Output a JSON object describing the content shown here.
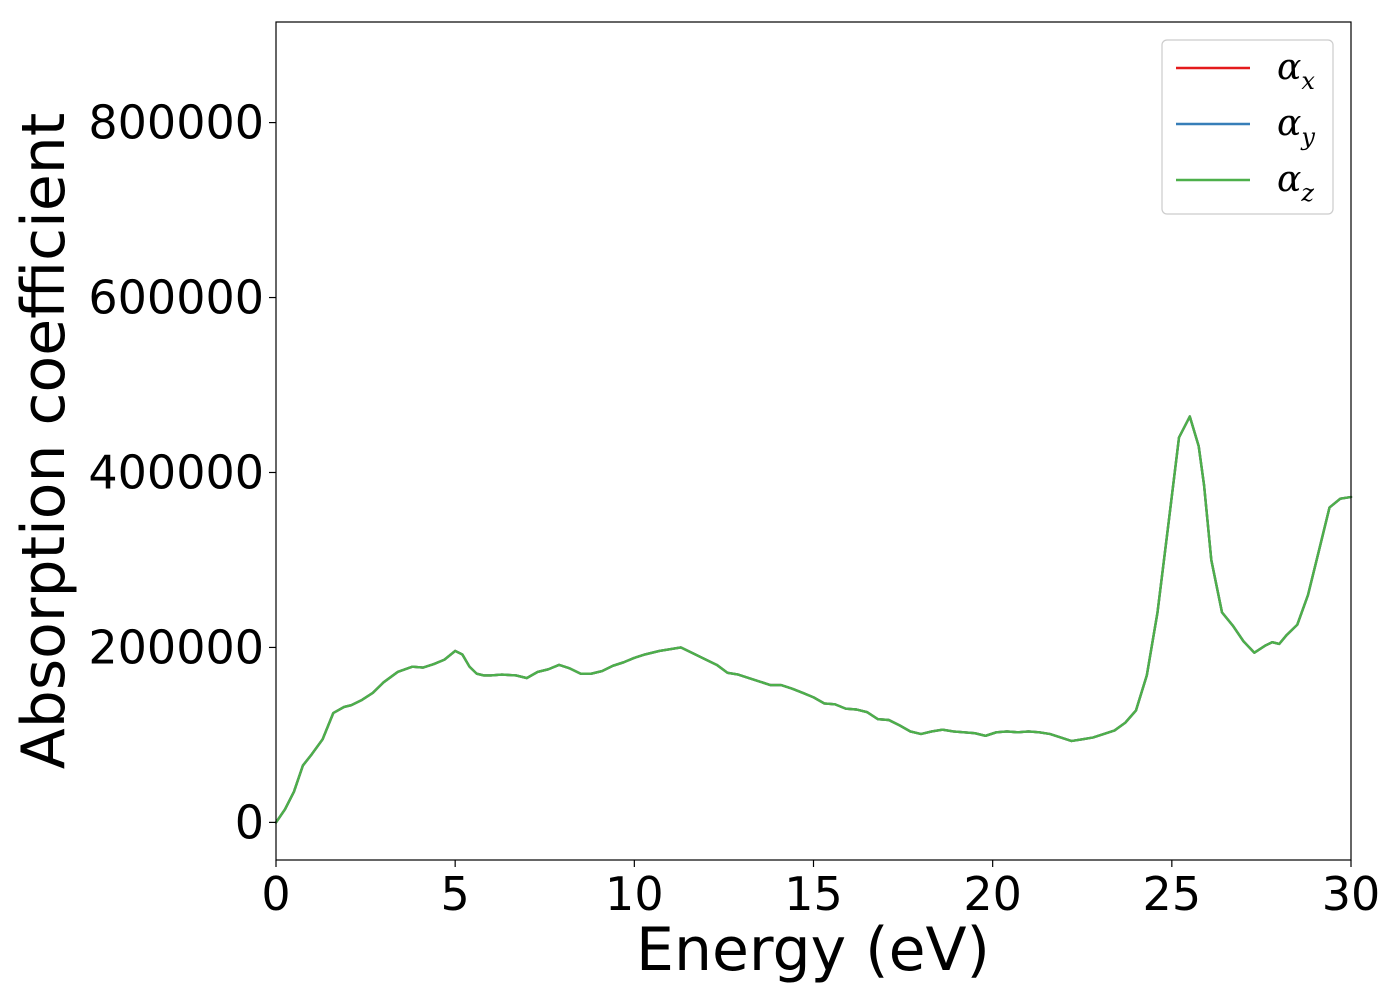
{
  "chart_data": {
    "type": "line",
    "xlabel": "Energy (eV)",
    "ylabel": "Absorption coefficient",
    "xlim": [
      0,
      30
    ],
    "ylim": [
      -43000,
      915000
    ],
    "xticks": [
      0,
      5,
      10,
      15,
      20,
      25,
      30
    ],
    "xtick_labels": [
      "0",
      "5",
      "10",
      "15",
      "20",
      "25",
      "30"
    ],
    "yticks": [
      0,
      200000,
      400000,
      600000,
      800000
    ],
    "ytick_labels": [
      "0",
      "200000",
      "400000",
      "600000",
      "800000"
    ],
    "grid": false,
    "legend_position": "top-right",
    "x": [
      0,
      0.25,
      0.5,
      0.75,
      1.0,
      1.3,
      1.6,
      1.9,
      2.1,
      2.4,
      2.7,
      3.0,
      3.4,
      3.8,
      4.1,
      4.4,
      4.7,
      5.0,
      5.2,
      5.4,
      5.6,
      5.8,
      6.0,
      6.3,
      6.7,
      7.0,
      7.3,
      7.6,
      7.9,
      8.2,
      8.5,
      8.8,
      9.1,
      9.4,
      9.7,
      10.0,
      10.3,
      10.7,
      11.0,
      11.3,
      11.6,
      12.0,
      12.3,
      12.6,
      12.9,
      13.2,
      13.5,
      13.8,
      14.1,
      14.4,
      14.7,
      15.0,
      15.3,
      15.6,
      15.9,
      16.2,
      16.5,
      16.8,
      17.1,
      17.4,
      17.7,
      18.0,
      18.3,
      18.6,
      18.9,
      19.2,
      19.5,
      19.8,
      20.1,
      20.4,
      20.7,
      21.0,
      21.3,
      21.6,
      21.9,
      22.2,
      22.5,
      22.8,
      23.1,
      23.4,
      23.7,
      24.0,
      24.3,
      24.6,
      24.9,
      25.2,
      25.5,
      25.75,
      25.9,
      26.1,
      26.4,
      26.7,
      27.0,
      27.3,
      27.6,
      27.8,
      28.0,
      28.2,
      28.5,
      28.8,
      29.1,
      29.4,
      29.7,
      30.0
    ],
    "series": [
      {
        "name": "αx",
        "color": "#e41a1c",
        "values": [
          0,
          15000,
          35000,
          65000,
          78000,
          95000,
          125000,
          132000,
          134000,
          140000,
          148000,
          160000,
          172000,
          178000,
          177000,
          181000,
          186000,
          196000,
          192000,
          178000,
          170000,
          168000,
          168000,
          169000,
          168000,
          165000,
          172000,
          175000,
          180000,
          176000,
          170000,
          170000,
          173000,
          179000,
          183000,
          188000,
          192000,
          196000,
          198000,
          200000,
          194000,
          186000,
          180000,
          171000,
          169000,
          165000,
          161000,
          157000,
          157000,
          153000,
          148000,
          143000,
          136000,
          135000,
          130000,
          129000,
          126000,
          118000,
          117000,
          111000,
          104000,
          101000,
          104000,
          106000,
          104000,
          103000,
          102000,
          99000,
          103000,
          104000,
          103000,
          104000,
          103000,
          101000,
          97000,
          93000,
          95000,
          97000,
          101000,
          105000,
          114000,
          128000,
          168000,
          240000,
          340000,
          440000,
          464000,
          430000,
          385000,
          300000,
          240000,
          225000,
          207000,
          194000,
          202000,
          206000,
          204000,
          214000,
          226000,
          260000,
          310000,
          360000,
          370000,
          372000
        ]
      },
      {
        "name": "αy",
        "color": "#377eb8",
        "values": [
          0,
          15000,
          35000,
          65000,
          78000,
          95000,
          125000,
          132000,
          134000,
          140000,
          148000,
          160000,
          172000,
          178000,
          177000,
          181000,
          186000,
          196000,
          192000,
          178000,
          170000,
          168000,
          168000,
          169000,
          168000,
          165000,
          172000,
          175000,
          180000,
          176000,
          170000,
          170000,
          173000,
          179000,
          183000,
          188000,
          192000,
          196000,
          198000,
          200000,
          194000,
          186000,
          180000,
          171000,
          169000,
          165000,
          161000,
          157000,
          157000,
          153000,
          148000,
          143000,
          136000,
          135000,
          130000,
          129000,
          126000,
          118000,
          117000,
          111000,
          104000,
          101000,
          104000,
          106000,
          104000,
          103000,
          102000,
          99000,
          103000,
          104000,
          103000,
          104000,
          103000,
          101000,
          97000,
          93000,
          95000,
          97000,
          101000,
          105000,
          114000,
          128000,
          168000,
          240000,
          340000,
          440000,
          464000,
          430000,
          385000,
          300000,
          240000,
          225000,
          207000,
          194000,
          202000,
          206000,
          204000,
          214000,
          226000,
          260000,
          310000,
          360000,
          370000,
          372000
        ]
      },
      {
        "name": "αz",
        "color": "#4daf4a",
        "values": [
          0,
          15000,
          35000,
          65000,
          78000,
          95000,
          125000,
          132000,
          134000,
          140000,
          148000,
          160000,
          172000,
          178000,
          177000,
          181000,
          186000,
          196000,
          192000,
          178000,
          170000,
          168000,
          168000,
          169000,
          168000,
          165000,
          172000,
          175000,
          180000,
          176000,
          170000,
          170000,
          173000,
          179000,
          183000,
          188000,
          192000,
          196000,
          198000,
          200000,
          194000,
          186000,
          180000,
          171000,
          169000,
          165000,
          161000,
          157000,
          157000,
          153000,
          148000,
          143000,
          136000,
          135000,
          130000,
          129000,
          126000,
          118000,
          117000,
          111000,
          104000,
          101000,
          104000,
          106000,
          104000,
          103000,
          102000,
          99000,
          103000,
          104000,
          103000,
          104000,
          103000,
          101000,
          97000,
          93000,
          95000,
          97000,
          101000,
          105000,
          114000,
          128000,
          168000,
          240000,
          340000,
          440000,
          464000,
          430000,
          385000,
          300000,
          240000,
          225000,
          207000,
          194000,
          202000,
          206000,
          204000,
          214000,
          226000,
          260000,
          310000,
          360000,
          370000,
          372000
        ]
      }
    ],
    "legend": [
      {
        "base": "α",
        "sub": "x",
        "color": "#e41a1c"
      },
      {
        "base": "α",
        "sub": "y",
        "color": "#377eb8"
      },
      {
        "base": "α",
        "sub": "z",
        "color": "#4daf4a"
      }
    ]
  }
}
